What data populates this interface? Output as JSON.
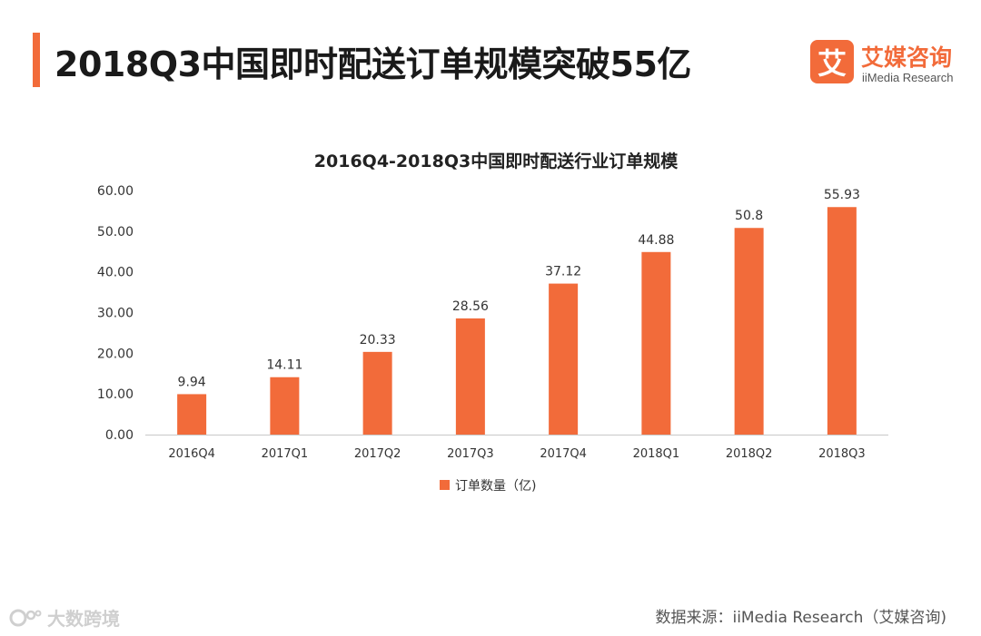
{
  "header": {
    "title": "2018Q3中国即时配送订单规模突破55亿",
    "accent_color": "#F26B3A"
  },
  "logo": {
    "mark": "艾",
    "name": "艾媒咨询",
    "sub": "iiMedia Research"
  },
  "chart_data": {
    "type": "bar",
    "title": "2016Q4-2018Q3中国即时配送行业订单规模",
    "categories": [
      "2016Q4",
      "2017Q1",
      "2017Q2",
      "2017Q3",
      "2017Q4",
      "2018Q1",
      "2018Q2",
      "2018Q3"
    ],
    "series": [
      {
        "name": "订单数量（亿)",
        "values": [
          9.94,
          14.11,
          20.33,
          28.56,
          37.12,
          44.88,
          50.8,
          55.93
        ],
        "labels": [
          "9.94",
          "14.11",
          "20.33",
          "28.56",
          "37.12",
          "44.88",
          "50.8",
          "55.93"
        ],
        "color": "#F26B3A"
      }
    ],
    "yticks": [
      "0.00",
      "10.00",
      "20.00",
      "30.00",
      "40.00",
      "50.00",
      "60.00"
    ],
    "ylim": [
      0,
      60
    ],
    "xlabel": "",
    "ylabel": "",
    "grid": false,
    "legend": "bottom-center"
  },
  "footer": {
    "source": "数据来源：iiMedia Research（艾媒咨询)",
    "watermark": "大数跨境"
  }
}
